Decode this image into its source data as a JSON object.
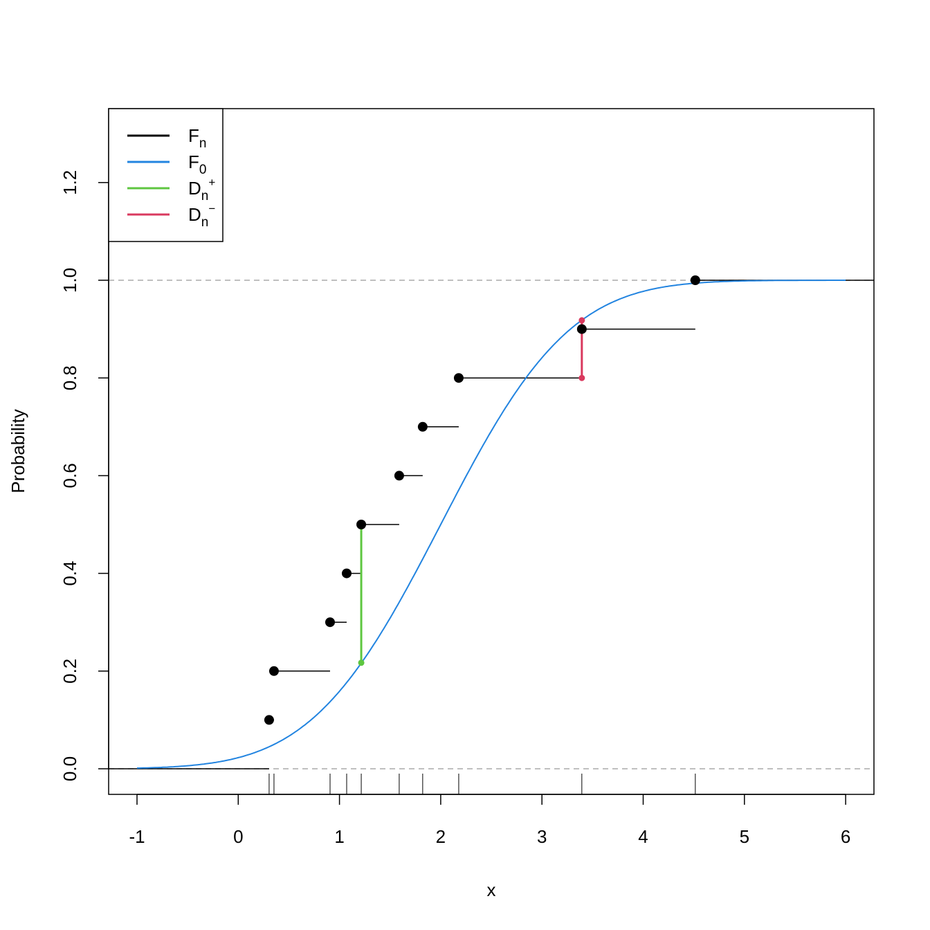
{
  "chart_data": {
    "type": "line",
    "title": "",
    "xlabel": "x",
    "ylabel": "Probability",
    "xlim": [
      -1,
      6
    ],
    "ylim": [
      0,
      1.3
    ],
    "xticks": [
      -1,
      0,
      1,
      2,
      3,
      4,
      5,
      6
    ],
    "yticks": [
      0.0,
      0.2,
      0.4,
      0.6,
      0.8,
      1.0,
      1.2
    ],
    "ytick_labels": [
      "0.0",
      "0.2",
      "0.4",
      "0.6",
      "0.8",
      "1.0",
      "1.2"
    ],
    "grid": false,
    "legend_position": "top-left",
    "ecdf_points": {
      "x": [
        0.305,
        0.353,
        0.907,
        1.071,
        1.215,
        1.59,
        1.822,
        2.178,
        3.394,
        4.515
      ],
      "y": [
        0.1,
        0.2,
        0.3,
        0.4,
        0.5,
        0.6,
        0.7,
        0.8,
        0.9,
        1.0
      ]
    },
    "F0": {
      "distribution": "normal",
      "mean": 2,
      "sd": 1
    },
    "D_plus": {
      "x": 1.215,
      "from": 0.217,
      "to": 0.5
    },
    "D_minus": {
      "x": 3.394,
      "from": 0.8,
      "to": 0.918
    },
    "reference_lines": [
      0,
      1
    ],
    "colors": {
      "Fn": "#000000",
      "F0": "#2284e0",
      "Dplus": "#5ec640",
      "Dminus": "#d9395e",
      "ref": "#aaaaaa"
    },
    "legend": [
      {
        "main": "F",
        "sub": "n",
        "sup": "",
        "color": "#000000"
      },
      {
        "main": "F",
        "sub": "0",
        "sup": "",
        "color": "#2284e0"
      },
      {
        "main": "D",
        "sub": "n",
        "sup": "+",
        "color": "#5ec640"
      },
      {
        "main": "D",
        "sub": "n",
        "sup": "−",
        "color": "#d9395e"
      }
    ]
  }
}
